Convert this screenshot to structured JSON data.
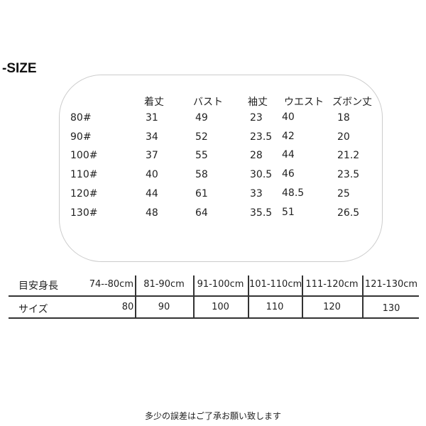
{
  "title": "-SIZE",
  "measure_table": {
    "headers": [
      "着丈",
      "バスト",
      "袖丈",
      "ウエスト",
      "ズボン丈"
    ],
    "rows": [
      {
        "size": "80#",
        "values": [
          "31",
          "49",
          "23",
          "40",
          "18"
        ]
      },
      {
        "size": "90#",
        "values": [
          "34",
          "52",
          "23.5",
          "42",
          "20"
        ]
      },
      {
        "size": "100#",
        "values": [
          "37",
          "55",
          "28",
          "44",
          "21.2"
        ]
      },
      {
        "size": "110#",
        "values": [
          "40",
          "58",
          "30.5",
          "46",
          "23.5"
        ]
      },
      {
        "size": "120#",
        "values": [
          "44",
          "61",
          "33",
          "48.5",
          "25"
        ]
      },
      {
        "size": "130#",
        "values": [
          "48",
          "64",
          "35.5",
          "51",
          "26.5"
        ]
      }
    ]
  },
  "height_table": {
    "height_label": "目安身長",
    "heights": [
      "74--80cm",
      "81-90cm",
      "91-100cm",
      "101-110cm",
      "111-120cm",
      "121-130cm"
    ],
    "size_label": "サイズ",
    "sizes": [
      "80",
      "90",
      "100",
      "110",
      "120",
      "130"
    ]
  },
  "note": "多少の誤差はご了承お願い致します"
}
